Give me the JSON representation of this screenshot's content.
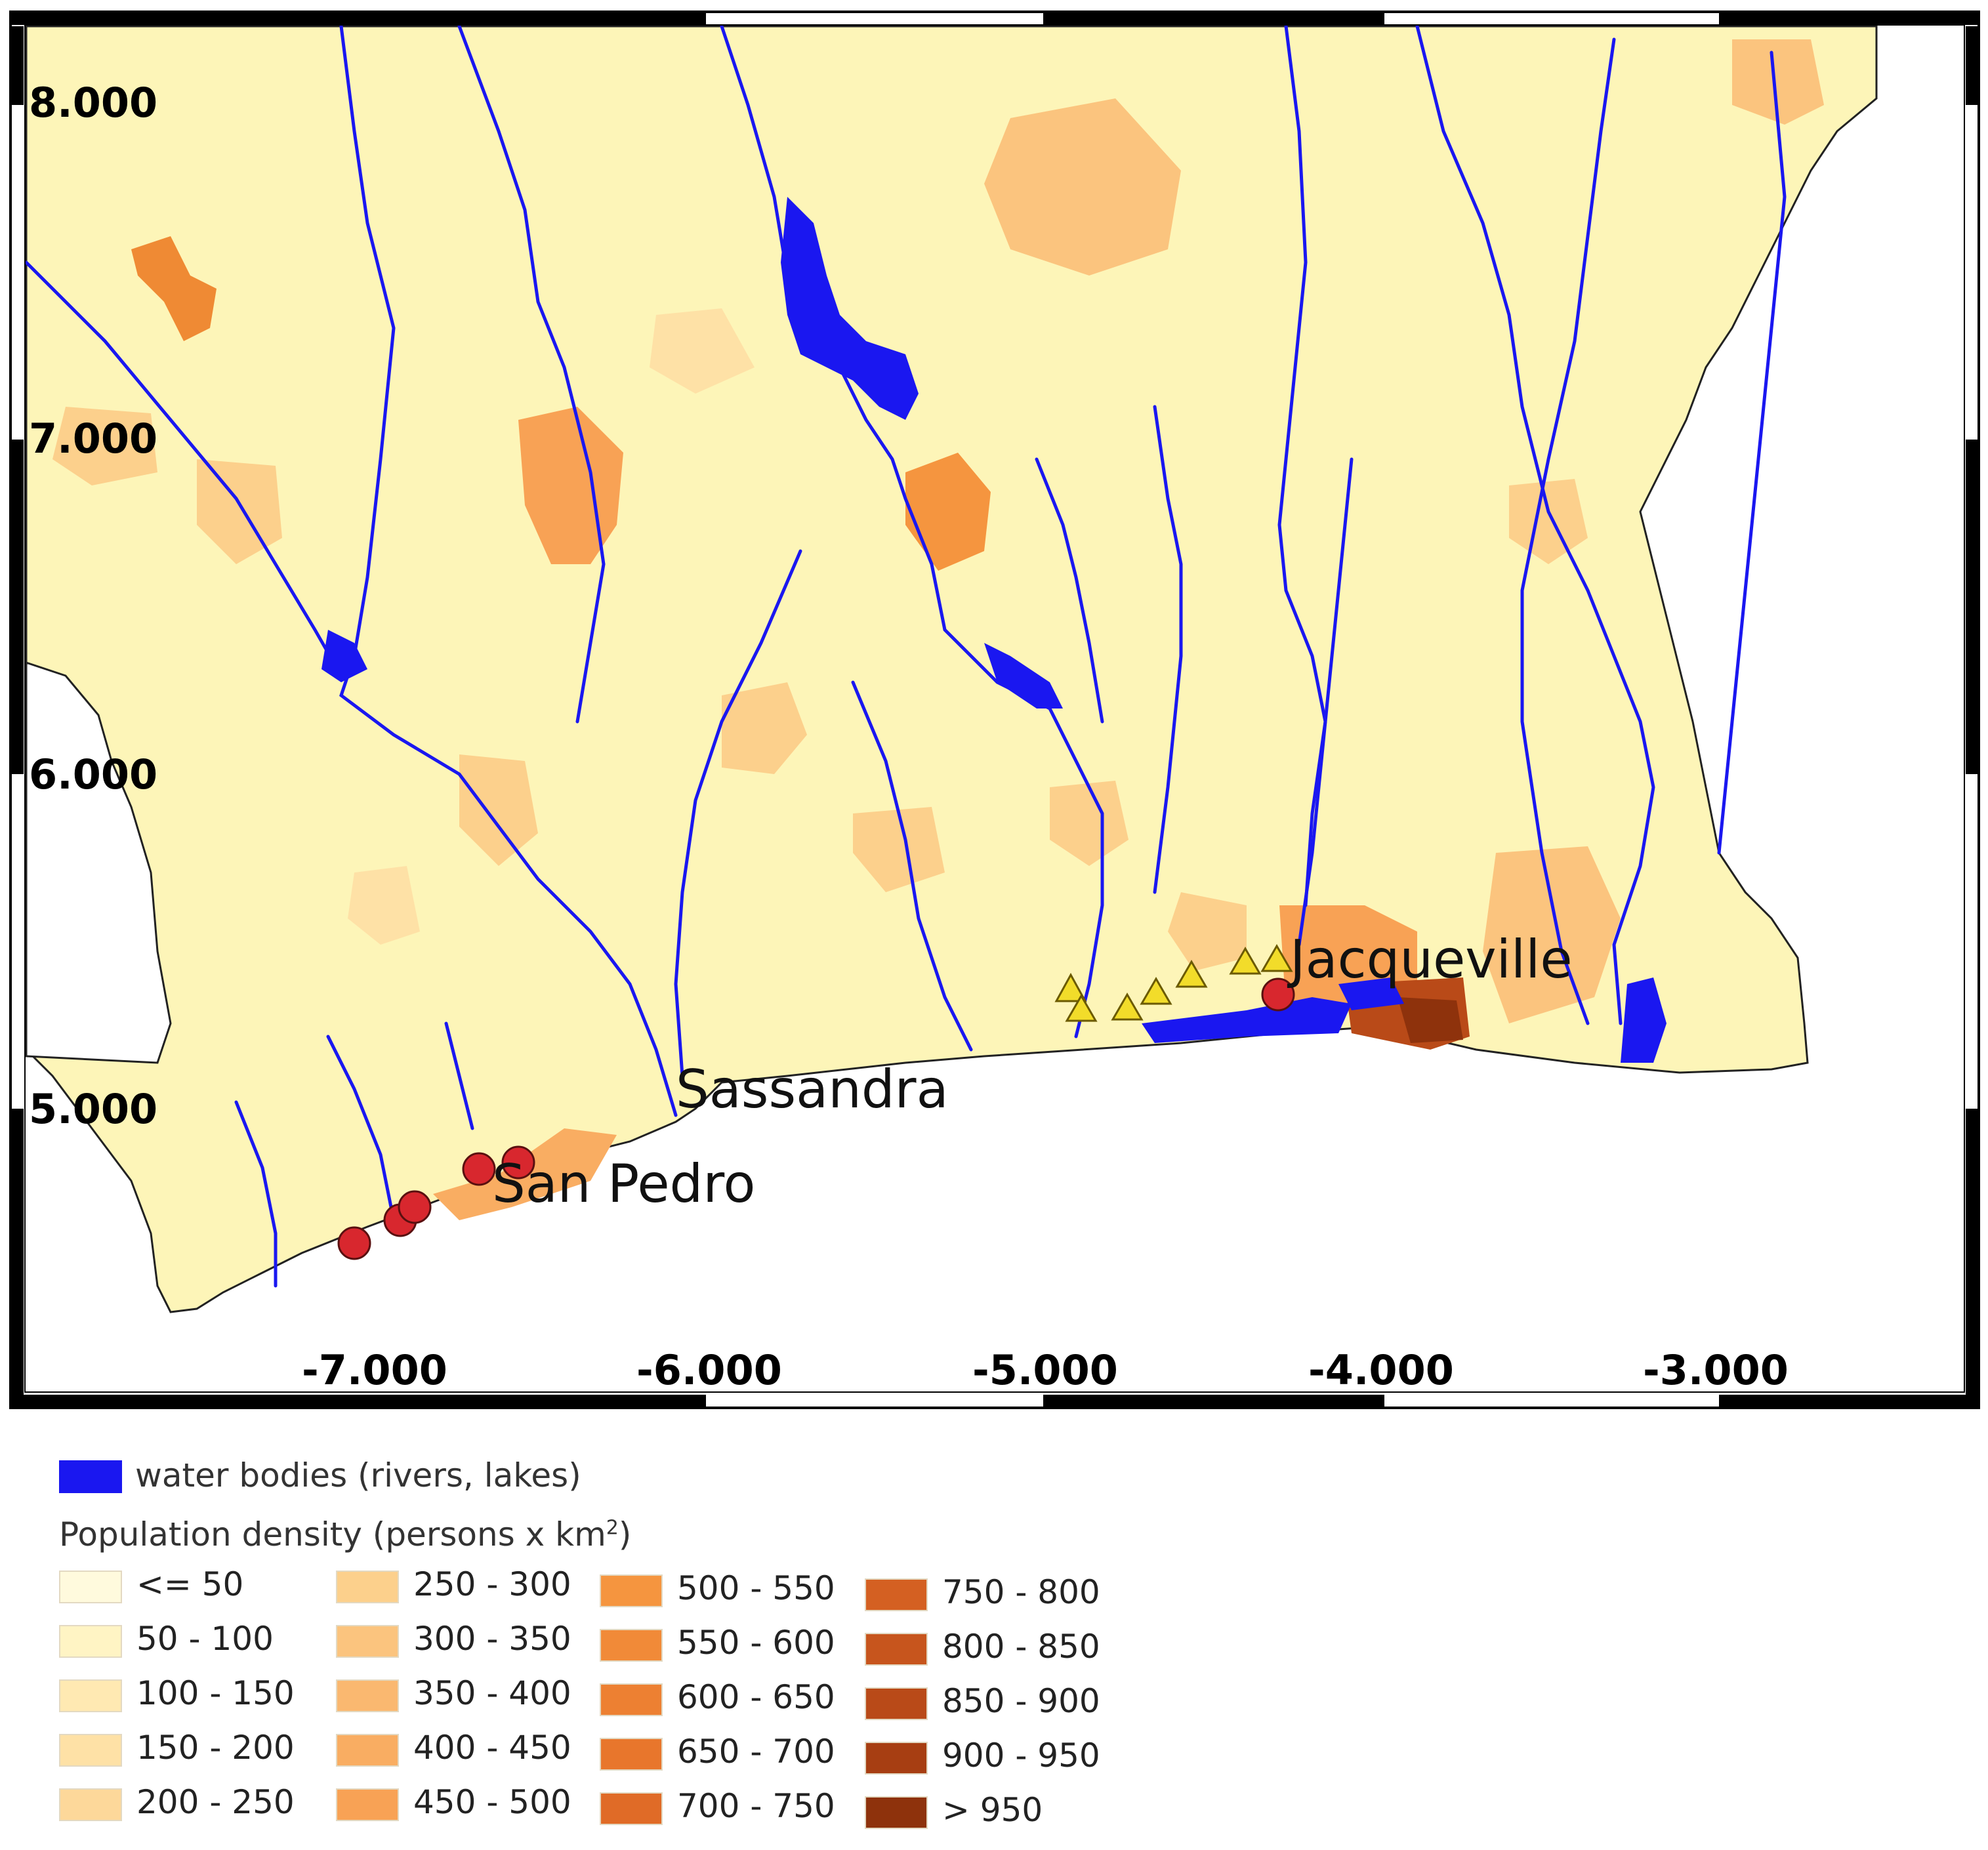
{
  "map": {
    "y_ticks": [
      "8.000",
      "7.000",
      "6.000",
      "5.000"
    ],
    "x_ticks": [
      "-7.000",
      "-6.000",
      "-5.000",
      "-4.000",
      "-3.000"
    ],
    "places": {
      "sassandra": "Sassandra",
      "san_pedro": "San Pedro",
      "jacqueville": "Jacqueville"
    },
    "colors": {
      "land": "#fdf5b8",
      "water": "#1a17f0",
      "circle_marker": "#d8272e",
      "triangle_marker": "#f2dc2a"
    }
  },
  "legend": {
    "water_label": "water bodies (rivers, lakes)",
    "density_title": "Population density (persons x km",
    "density_title_sup": "2",
    "density_title_close": ")",
    "classes": [
      {
        "label": "<= 50",
        "color": "#fffadd"
      },
      {
        "label": "50 - 100",
        "color": "#fff4c4"
      },
      {
        "label": "100 - 150",
        "color": "#ffe9b2"
      },
      {
        "label": "150 - 200",
        "color": "#fee1a6"
      },
      {
        "label": "200 - 250",
        "color": "#fdd89a"
      },
      {
        "label": "250 - 300",
        "color": "#fcd08c"
      },
      {
        "label": "300 - 350",
        "color": "#fbc47e"
      },
      {
        "label": "350 - 400",
        "color": "#fab870"
      },
      {
        "label": "400 - 450",
        "color": "#f9ad62"
      },
      {
        "label": "450 - 500",
        "color": "#f8a255"
      },
      {
        "label": "500 - 550",
        "color": "#f5953f"
      },
      {
        "label": "550 - 600",
        "color": "#f18a38"
      },
      {
        "label": "600 - 650",
        "color": "#ed8032"
      },
      {
        "label": "650 - 700",
        "color": "#e8762c"
      },
      {
        "label": "700 - 750",
        "color": "#e06b27"
      },
      {
        "label": "750 - 800",
        "color": "#d46022"
      },
      {
        "label": "800 - 850",
        "color": "#c7551d"
      },
      {
        "label": "850 - 900",
        "color": "#b94a18"
      },
      {
        "label": "900 - 950",
        "color": "#a73e12"
      },
      {
        "label": "> 950",
        "color": "#8e320c"
      }
    ]
  }
}
